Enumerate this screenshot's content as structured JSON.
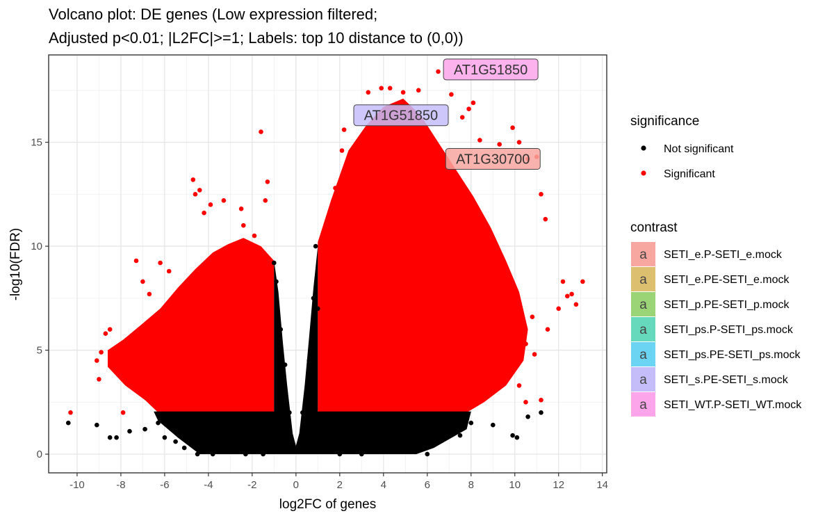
{
  "chart_data": {
    "type": "scatter",
    "title_lines": [
      "Volcano plot: DE genes (Low expression filtered;",
      "Adjusted p<0.01; |L2FC|>=1; Labels: top 10 distance to (0,0))"
    ],
    "xlabel": "log2FC of genes",
    "ylabel": "-log10(FDR)",
    "xlim": [
      -11.3,
      14.2
    ],
    "ylim": [
      -0.9,
      19.2
    ],
    "x_ticks": [
      -10,
      -8,
      -6,
      -4,
      -2,
      0,
      2,
      4,
      6,
      8,
      10,
      12,
      14
    ],
    "y_ticks": [
      0,
      5,
      10,
      15
    ],
    "grid": true,
    "thresholds": {
      "abs_log2fc": 1,
      "fdr": 0.01
    },
    "legend_placement": "right",
    "significance_legend": {
      "title": "significance",
      "items": [
        {
          "label": "Not significant",
          "color": "#000000"
        },
        {
          "label": "Significant",
          "color": "#ff0000"
        }
      ]
    },
    "contrast_legend": {
      "title": "contrast",
      "key_letter": "a",
      "items": [
        {
          "label": "SETI_e.P-SETI_e.mock",
          "color": "#f8a6a0"
        },
        {
          "label": "SETI_e.PE-SETI_e.mock",
          "color": "#dcc070"
        },
        {
          "label": "SETI_p.PE-SETI_p.mock",
          "color": "#9ad476"
        },
        {
          "label": "SETI_ps.P-SETI_ps.mock",
          "color": "#66d9bc"
        },
        {
          "label": "SETI_ps.PE-SETI_ps.mock",
          "color": "#6ad4f2"
        },
        {
          "label": "SETI_s.PE-SETI_s.mock",
          "color": "#c5bdfa"
        },
        {
          "label": "SETI_WT.P-SETI_WT.mock",
          "color": "#fca5ea"
        }
      ]
    },
    "labels": [
      {
        "text": "AT1G51850",
        "x": 8.9,
        "y": 18.5,
        "contrast_index": 6
      },
      {
        "text": "AT1G51850",
        "x": 4.8,
        "y": 16.3,
        "contrast_index": 5
      },
      {
        "text": "AT1G30700",
        "x": 9.0,
        "y": 14.2,
        "contrast_index": 0
      }
    ],
    "significant_points": [
      [
        -10.3,
        2.0
      ],
      [
        -9.1,
        4.5
      ],
      [
        -9.0,
        3.6
      ],
      [
        -8.9,
        4.9
      ],
      [
        -8.7,
        5.8
      ],
      [
        -8.5,
        6.0
      ],
      [
        -8.3,
        4.3
      ],
      [
        -7.9,
        2.0
      ],
      [
        -7.3,
        9.3
      ],
      [
        -7.0,
        8.3
      ],
      [
        -6.7,
        7.7
      ],
      [
        -6.2,
        9.2
      ],
      [
        -5.8,
        8.8
      ],
      [
        -4.7,
        13.2
      ],
      [
        -4.6,
        12.5
      ],
      [
        -4.4,
        12.7
      ],
      [
        -4.2,
        11.6
      ],
      [
        -3.9,
        12.0
      ],
      [
        -3.3,
        12.2
      ],
      [
        -2.5,
        11.8
      ],
      [
        -2.4,
        11.0
      ],
      [
        -1.9,
        10.5
      ],
      [
        -1.6,
        15.5
      ],
      [
        -1.3,
        13.1
      ],
      [
        -1.4,
        12.2
      ],
      [
        1.2,
        9.0
      ],
      [
        1.8,
        12.8
      ],
      [
        2.1,
        14.6
      ],
      [
        2.2,
        15.6
      ],
      [
        3.3,
        17.4
      ],
      [
        3.9,
        17.6
      ],
      [
        4.3,
        17.6
      ],
      [
        4.9,
        17.4
      ],
      [
        5.6,
        17.5
      ],
      [
        6.5,
        18.4
      ],
      [
        7.1,
        17.3
      ],
      [
        7.6,
        16.2
      ],
      [
        7.9,
        16.6
      ],
      [
        8.1,
        16.9
      ],
      [
        8.4,
        15.1
      ],
      [
        9.3,
        14.9
      ],
      [
        9.9,
        15.7
      ],
      [
        10.2,
        15.0
      ],
      [
        10.6,
        14.2
      ],
      [
        11.0,
        14.3
      ],
      [
        11.2,
        12.5
      ],
      [
        11.4,
        11.3
      ],
      [
        12.2,
        8.3
      ],
      [
        12.4,
        7.6
      ],
      [
        12.6,
        7.7
      ],
      [
        12.8,
        7.2
      ],
      [
        13.1,
        8.3
      ],
      [
        12.0,
        7.0
      ],
      [
        11.5,
        6.0
      ],
      [
        10.8,
        6.6
      ],
      [
        10.5,
        5.3
      ],
      [
        10.2,
        3.3
      ],
      [
        10.0,
        5.0
      ],
      [
        10.9,
        4.8
      ],
      [
        11.2,
        2.6
      ],
      [
        10.5,
        2.5
      ],
      [
        9.5,
        3.9
      ]
    ],
    "not_significant_points": [
      [
        -10.4,
        1.5
      ],
      [
        -9.1,
        1.4
      ],
      [
        -8.5,
        0.8
      ],
      [
        -8.2,
        0.8
      ],
      [
        -7.6,
        1.1
      ],
      [
        -6.9,
        1.2
      ],
      [
        -6.3,
        1.5
      ],
      [
        -6.0,
        0.8
      ],
      [
        -5.5,
        0.6
      ],
      [
        -5.1,
        0.3
      ],
      [
        -4.5,
        0.0
      ],
      [
        -3.8,
        0.0
      ],
      [
        -2.3,
        0.0
      ],
      [
        -1.5,
        0.0
      ],
      [
        -1.0,
        9.2
      ],
      [
        -0.9,
        8.3
      ],
      [
        -0.7,
        6.0
      ],
      [
        -0.5,
        4.3
      ],
      [
        -0.3,
        2.0
      ],
      [
        0.3,
        2.0
      ],
      [
        0.6,
        4.5
      ],
      [
        0.8,
        7.5
      ],
      [
        0.9,
        10.0
      ],
      [
        1.0,
        7.0
      ],
      [
        2.0,
        0.0
      ],
      [
        3.0,
        0.0
      ],
      [
        4.0,
        0.3
      ],
      [
        5.5,
        0.2
      ],
      [
        6.0,
        0.0
      ],
      [
        7.5,
        0.9
      ],
      [
        8.0,
        1.5
      ],
      [
        9.0,
        1.4
      ],
      [
        9.9,
        0.9
      ],
      [
        10.1,
        0.8
      ],
      [
        10.6,
        1.8
      ],
      [
        11.2,
        2.0
      ]
    ]
  }
}
